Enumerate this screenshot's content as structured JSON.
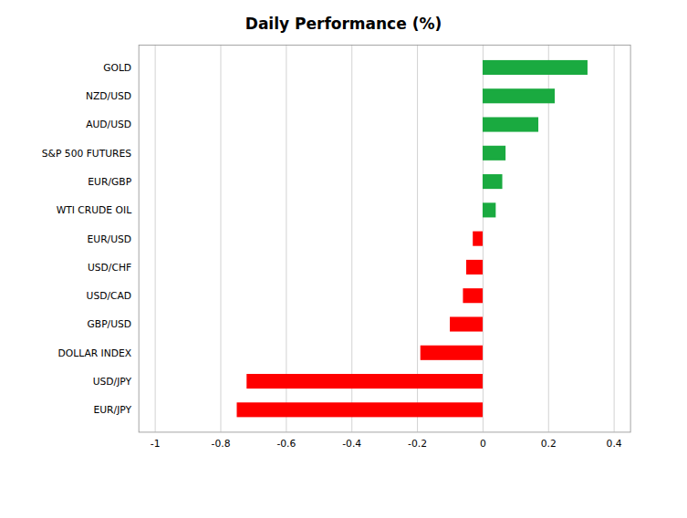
{
  "chart_data": {
    "type": "bar",
    "orientation": "horizontal",
    "title": "Daily Performance (%)",
    "categories": [
      "EUR/JPY",
      "USD/JPY",
      "DOLLAR INDEX",
      "GBP/USD",
      "USD/CAD",
      "USD/CHF",
      "EUR/USD",
      "WTI CRUDE OIL",
      "EUR/GBP",
      "S&P 500 FUTURES",
      "AUD/USD",
      "NZD/USD",
      "GOLD"
    ],
    "values": [
      -0.75,
      -0.72,
      -0.19,
      -0.1,
      -0.06,
      -0.05,
      -0.03,
      0.04,
      0.06,
      0.07,
      0.17,
      0.22,
      0.32
    ],
    "colors": [
      "#ff0000",
      "#ff0000",
      "#ff0000",
      "#ff0000",
      "#ff0000",
      "#ff0000",
      "#ff0000",
      "#1aaa40",
      "#1aaa40",
      "#1aaa40",
      "#1aaa40",
      "#1aaa40",
      "#1aaa40"
    ],
    "xlim": [
      -1.05,
      0.45
    ],
    "xticks": [
      -1,
      -0.8,
      -0.6,
      -0.4,
      -0.2,
      0,
      0.2,
      0.4
    ],
    "grid": true
  }
}
